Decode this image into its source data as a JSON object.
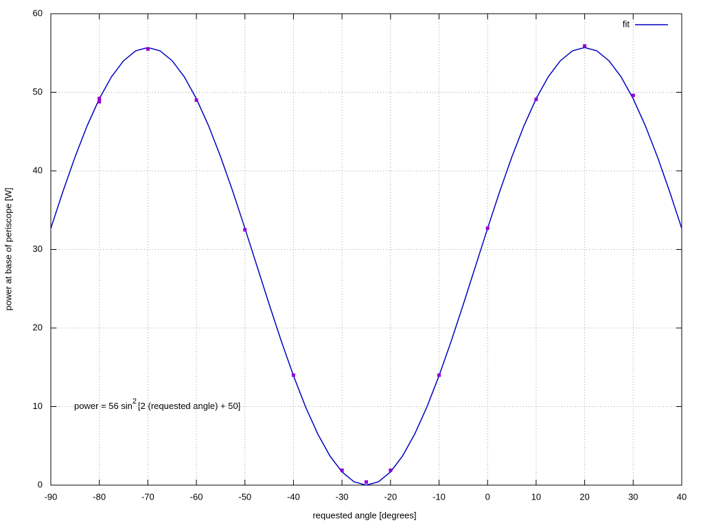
{
  "chart_data": {
    "type": "line",
    "xlabel": "requested angle [degrees]",
    "ylabel": "power at base of periscope [W]",
    "annotation": {
      "text": "power = 56 sin",
      "superscript": "2",
      "rest": "[2 (requested angle) + 50]"
    },
    "xlim": [
      -90,
      40
    ],
    "ylim": [
      0,
      60
    ],
    "xticks": [
      -90,
      -80,
      -70,
      -60,
      -50,
      -40,
      -30,
      -20,
      -10,
      0,
      10,
      20,
      30,
      40
    ],
    "yticks": [
      0,
      10,
      20,
      30,
      40,
      50,
      60
    ],
    "grid": true,
    "legend": "top-right",
    "series": [
      {
        "name": "fit",
        "color": "#0000c0",
        "style": "lines",
        "x": [
          -90,
          -87.5,
          -85,
          -82.5,
          -80,
          -77.5,
          -75,
          -72.5,
          -70,
          -67.5,
          -65,
          -62.5,
          -60,
          -57.5,
          -55,
          -52.5,
          -50,
          -47.5,
          -45,
          -42.5,
          -40,
          -37.5,
          -35,
          -32.5,
          -30,
          -27.5,
          -25,
          -22.5,
          -20,
          -17.5,
          -15,
          -12.5,
          -10,
          -7.5,
          -5,
          -2.5,
          0,
          2.5,
          5,
          7.5,
          10,
          12.5,
          15,
          17.5,
          20,
          22.5,
          25,
          27.5,
          30,
          32.5,
          35,
          37.5,
          40
        ],
        "values": [
          32.68,
          37.38,
          41.78,
          45.75,
          49.18,
          51.97,
          54.02,
          55.28,
          55.7,
          55.28,
          54.02,
          51.97,
          49.18,
          45.75,
          41.78,
          37.38,
          32.68,
          27.85,
          23.01,
          18.32,
          13.93,
          9.95,
          6.52,
          3.73,
          1.68,
          0.42,
          0,
          0.42,
          1.68,
          3.73,
          6.52,
          9.95,
          13.93,
          18.32,
          23.01,
          27.85,
          32.68,
          37.38,
          41.78,
          45.75,
          49.18,
          51.97,
          54.02,
          55.28,
          55.7,
          55.28,
          54.02,
          51.97,
          49.18,
          45.75,
          41.78,
          37.38,
          32.68
        ]
      },
      {
        "color": "#9400d3",
        "style": "points",
        "x": [
          -80,
          -80,
          -70,
          -60,
          -50,
          -40,
          -30,
          -25,
          -20,
          -10,
          0,
          10,
          20,
          30
        ],
        "values": [
          48.8,
          49.2,
          55.5,
          49,
          32.5,
          14,
          1.9,
          0.4,
          1.9,
          14,
          32.7,
          49.1,
          55.9,
          49.6
        ]
      }
    ]
  }
}
